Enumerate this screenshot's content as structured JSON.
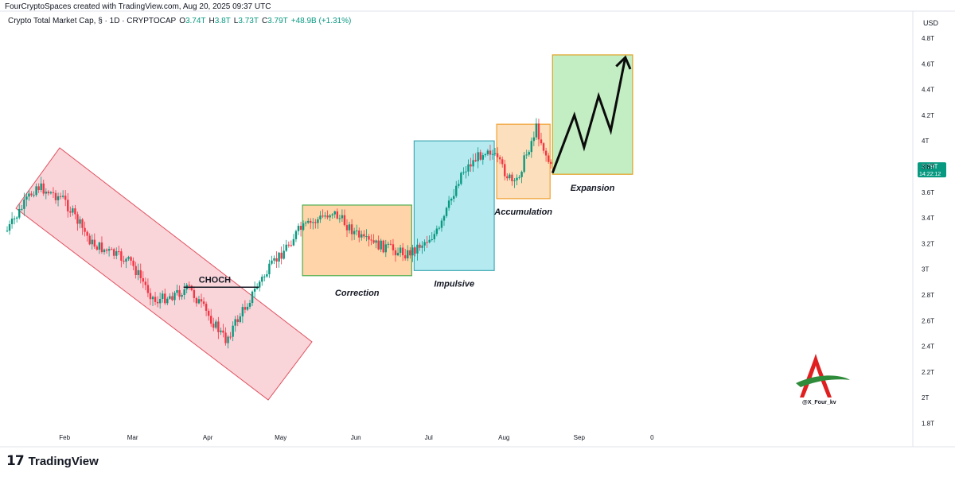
{
  "header": {
    "created_by": "FourCryptoSpaces created with TradingView.com, Aug 20, 2025 09:37 UTC"
  },
  "symbol_bar": {
    "name": "Crypto Total Market Cap, § · 1D · CRYPTOCAP",
    "o_label": "O",
    "o_value": "3.74T",
    "h_label": "H",
    "h_value": "3.8T",
    "l_label": "L",
    "l_value": "3.73T",
    "c_label": "C",
    "c_value": "3.79T",
    "change": "+48.9B (+1.31%)"
  },
  "price_axis": {
    "currency": "USD"
  },
  "last_price": {
    "value": "3.79T",
    "countdown": "14:22:12",
    "color": "#089981"
  },
  "footer": {
    "brand": "TradingView",
    "mark": "17"
  },
  "watermark": {
    "handle": "@X_Four_kv"
  },
  "colors": {
    "up": "#089981",
    "down": "#f23645",
    "descending_channel": "#f7c6cc",
    "correction": "#ffcc99",
    "impulsive": "#a8e6ee",
    "accumulation": "#fcd9b0",
    "expansion": "#b9eab9"
  },
  "chart_data": {
    "type": "candlestick",
    "title": "Crypto Total Market Cap, § · 1D · CRYPTOCAP",
    "x_ticks": [
      "Feb",
      "Mar",
      "Apr",
      "May",
      "Jun",
      "Jul",
      "Aug",
      "Sep",
      "0"
    ],
    "y_ticks": [
      "4.8T",
      "4.6T",
      "4.4T",
      "4.2T",
      "4T",
      "3.8T",
      "3.6T",
      "3.4T",
      "3.2T",
      "3T",
      "2.8T",
      "2.6T",
      "2.4T",
      "2.2T",
      "2T",
      "1.8T"
    ],
    "ylim": [
      1.8,
      4.8
    ],
    "grid": false,
    "approx_close_path": [
      {
        "date": "2025-01-08",
        "close": 3.3
      },
      {
        "date": "2025-01-20",
        "close": 3.65
      },
      {
        "date": "2025-01-31",
        "close": 3.55
      },
      {
        "date": "2025-02-12",
        "close": 3.2
      },
      {
        "date": "2025-02-28",
        "close": 3.05
      },
      {
        "date": "2025-03-10",
        "close": 2.75
      },
      {
        "date": "2025-03-24",
        "close": 2.85
      },
      {
        "date": "2025-04-08",
        "close": 2.45
      },
      {
        "date": "2025-04-22",
        "close": 2.9
      },
      {
        "date": "2025-05-08",
        "close": 3.3
      },
      {
        "date": "2025-05-22",
        "close": 3.45
      },
      {
        "date": "2025-06-04",
        "close": 3.22
      },
      {
        "date": "2025-06-22",
        "close": 3.12
      },
      {
        "date": "2025-07-05",
        "close": 3.3
      },
      {
        "date": "2025-07-14",
        "close": 3.75
      },
      {
        "date": "2025-07-25",
        "close": 3.95
      },
      {
        "date": "2025-08-05",
        "close": 3.65
      },
      {
        "date": "2025-08-14",
        "close": 4.1
      },
      {
        "date": "2025-08-20",
        "close": 3.79
      }
    ],
    "annotations": [
      {
        "label": "CHOCH",
        "type": "level",
        "from": "2025-03-22",
        "to": "2025-04-22",
        "price": 2.86
      },
      {
        "label": "Correction",
        "type": "zone",
        "from": "2025-05-10",
        "to": "2025-06-24",
        "price_range": [
          2.95,
          3.5
        ]
      },
      {
        "label": "Impulsive",
        "type": "zone",
        "from": "2025-06-25",
        "to": "2025-07-28",
        "price_range": [
          2.99,
          4.0
        ]
      },
      {
        "label": "Accumulation",
        "type": "zone",
        "from": "2025-07-29",
        "to": "2025-08-20",
        "price_range": [
          3.55,
          4.13
        ]
      },
      {
        "label": "Expansion",
        "type": "zone",
        "from": "2025-08-21",
        "to": "2025-09-23",
        "price_range": [
          3.74,
          4.67
        ]
      }
    ],
    "projection": [
      {
        "date": "2025-08-21",
        "price": 3.75
      },
      {
        "date": "2025-08-30",
        "price": 4.2
      },
      {
        "date": "2025-09-03",
        "price": 3.95
      },
      {
        "date": "2025-09-09",
        "price": 4.35
      },
      {
        "date": "2025-09-14",
        "price": 4.08
      },
      {
        "date": "2025-09-20",
        "price": 4.65
      }
    ]
  }
}
